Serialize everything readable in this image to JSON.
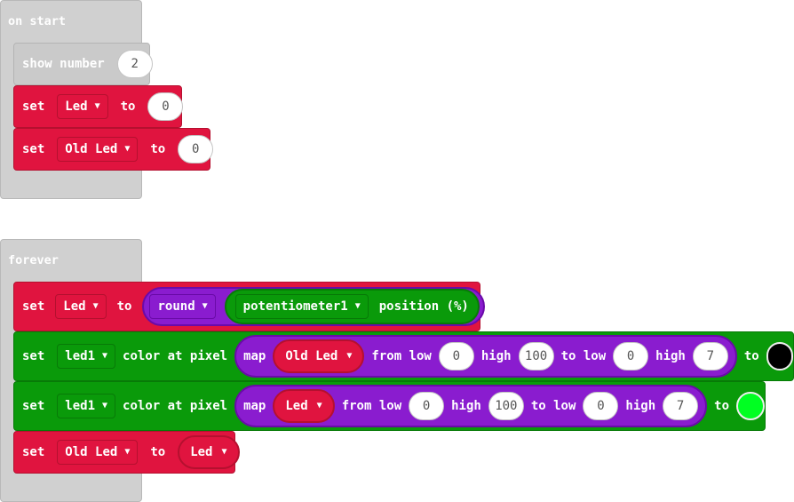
{
  "on_start": {
    "label": "on start",
    "show_number": {
      "label": "show number",
      "value": "2"
    },
    "set_led": {
      "set": "set",
      "var": "Led",
      "to": "to",
      "value": "0"
    },
    "set_old_led": {
      "set": "set",
      "var": "Old Led",
      "to": "to",
      "value": "0"
    }
  },
  "forever": {
    "label": "forever",
    "set_led": {
      "set": "set",
      "var": "Led",
      "to": "to",
      "round": "round",
      "pot": "potentiometer1",
      "position": "position (%)"
    },
    "pixel1": {
      "set": "set",
      "strip": "led1",
      "color_at": "color at pixel",
      "map": "map",
      "var": "Old Led",
      "from_low": "from low",
      "v1": "0",
      "high": "high",
      "v2": "100",
      "to_low": "to low",
      "v3": "0",
      "high2": "high",
      "v4": "7",
      "to": "to",
      "color": "#000000"
    },
    "pixel2": {
      "set": "set",
      "strip": "led1",
      "color_at": "color at pixel",
      "map": "map",
      "var": "Led",
      "from_low": "from low",
      "v1": "0",
      "high": "high",
      "v2": "100",
      "to_low": "to low",
      "v3": "0",
      "high2": "high",
      "v4": "7",
      "to": "to",
      "color": "#00ff22"
    },
    "set_old_led": {
      "set": "set",
      "var": "Old Led",
      "to": "to",
      "value_var": "Led"
    }
  }
}
